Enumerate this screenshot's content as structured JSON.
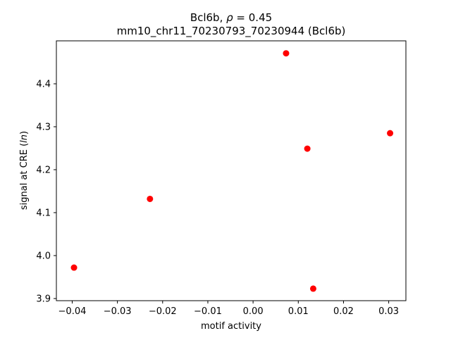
{
  "chart_data": {
    "type": "scatter",
    "title_line1_prefix": "Bcl6b, ",
    "title_rho_symbol": "ρ",
    "title_rho_value": " = 0.45",
    "title_line2": "mm10_chr11_70230793_70230944 (Bcl6b)",
    "xlabel": "motif activity",
    "ylabel_prefix": "signal at CRE (",
    "ylabel_italic": "ln",
    "ylabel_suffix": ")",
    "xlim": [
      -0.0435,
      0.0338
    ],
    "ylim": [
      3.895,
      4.5
    ],
    "xticks": [
      -0.04,
      -0.03,
      -0.02,
      -0.01,
      0.0,
      0.01,
      0.02,
      0.03
    ],
    "xtick_labels": [
      "−0.04",
      "−0.03",
      "−0.02",
      "−0.01",
      "0.00",
      "0.01",
      "0.02",
      "0.03"
    ],
    "yticks": [
      3.9,
      4.0,
      4.1,
      4.2,
      4.3,
      4.4
    ],
    "ytick_labels": [
      "3.9",
      "4.0",
      "4.1",
      "4.2",
      "4.3",
      "4.4"
    ],
    "grid": false,
    "point_color": "#ff0000",
    "points": [
      {
        "x": -0.0396,
        "y": 3.972
      },
      {
        "x": -0.0228,
        "y": 4.132
      },
      {
        "x": 0.0073,
        "y": 4.471
      },
      {
        "x": 0.012,
        "y": 4.249
      },
      {
        "x": 0.0133,
        "y": 3.923
      },
      {
        "x": 0.0303,
        "y": 4.285
      }
    ]
  }
}
